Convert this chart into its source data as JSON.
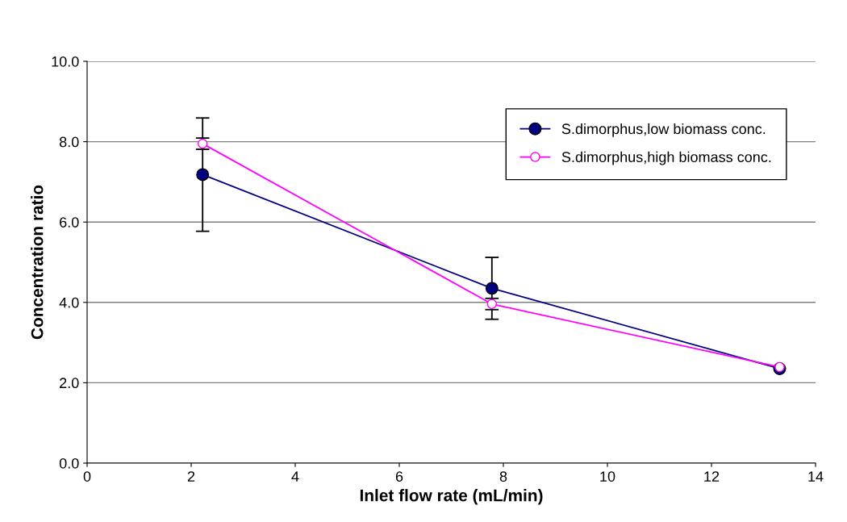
{
  "chart_data": {
    "type": "line",
    "xlabel": "Inlet flow rate (mL/min)",
    "ylabel": "Concentration ratio",
    "xlim": [
      0,
      14
    ],
    "xticks": [
      0,
      2,
      4,
      6,
      8,
      10,
      12,
      14
    ],
    "ylim": [
      0,
      10
    ],
    "yticks": [
      {
        "value": 0,
        "label": "0.0"
      },
      {
        "value": 2,
        "label": "2.0"
      },
      {
        "value": 4,
        "label": "4.0"
      },
      {
        "value": 6,
        "label": "6.0"
      },
      {
        "value": 8,
        "label": "8.0"
      },
      {
        "value": 10,
        "label": "10.0"
      }
    ],
    "grid": "y",
    "legend": "top right",
    "marker": "circle",
    "line_style": "solid",
    "series": [
      {
        "name": "S.dimorphus,low biomass conc.",
        "color": "#000080",
        "x": [
          2.22,
          7.78,
          13.31
        ],
        "values": [
          7.18,
          4.35,
          2.35
        ],
        "errors": [
          1.41,
          0.77,
          null
        ]
      },
      {
        "name": "S.dimorphus,high biomass conc.",
        "color": "#ff00ff",
        "x": [
          2.22,
          7.78,
          13.31
        ],
        "values": [
          7.95,
          3.96,
          2.39
        ],
        "errors": [
          0.14,
          0.14,
          null
        ]
      }
    ]
  }
}
